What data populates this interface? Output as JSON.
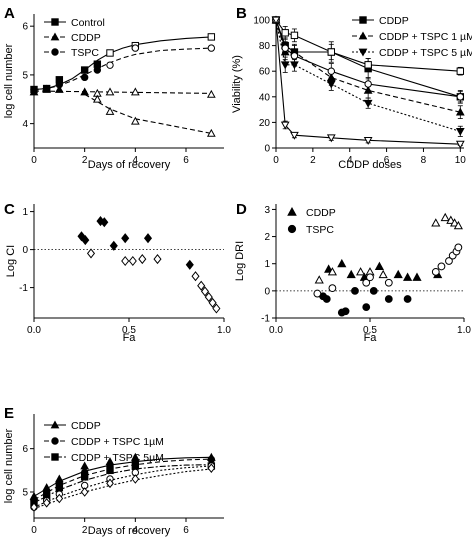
{
  "chart_data": [
    {
      "panel": "A",
      "type": "line",
      "xlabel": "Days of recovery",
      "ylabel": "log cell number",
      "xlim": [
        0,
        7.5
      ],
      "ylim": [
        3.5,
        6.25
      ],
      "xticks": [
        "0",
        "2",
        "4",
        "6"
      ],
      "xtick_values": [
        0,
        2,
        4,
        6
      ],
      "yticks": [
        "4",
        "5",
        "6"
      ],
      "ytick_values": [
        4,
        5,
        6
      ],
      "legend": "top-left",
      "series": [
        {
          "name": "Control",
          "marker": "square",
          "dash": "solid",
          "open_from": 3,
          "x": [
            0,
            0.5,
            1,
            2,
            2.5,
            3,
            4,
            7
          ],
          "y": [
            4.7,
            4.72,
            4.9,
            5.1,
            5.22,
            5.45,
            5.6,
            5.78
          ],
          "fit_x": [
            0,
            0.5,
            1,
            1.5,
            2,
            2.5,
            3,
            3.5,
            4,
            5,
            6,
            7
          ],
          "fit_y": [
            4.7,
            4.72,
            4.8,
            4.92,
            5.1,
            5.3,
            5.45,
            5.55,
            5.62,
            5.7,
            5.75,
            5.78
          ]
        },
        {
          "name": "CDDP",
          "marker": "triangle",
          "dash": "dash",
          "open_from": 2.5,
          "x": [
            0,
            0.5,
            1,
            2,
            2.5,
            3,
            4,
            7
          ],
          "y": [
            4.65,
            4.7,
            4.7,
            4.65,
            4.62,
            4.65,
            4.65,
            4.6
          ],
          "fit_x": [
            0,
            7
          ],
          "fit_y": [
            4.67,
            4.62
          ]
        },
        {
          "name": "TSPC",
          "marker": "circle",
          "dash": "dash",
          "open_from": 3,
          "x": [
            0,
            0.5,
            1,
            2,
            2.5,
            3,
            4,
            7
          ],
          "y": [
            4.7,
            4.72,
            4.8,
            4.95,
            5.1,
            5.2,
            5.55,
            5.55
          ],
          "fit_x": [
            0,
            0.5,
            1,
            1.5,
            2,
            2.5,
            3,
            3.5,
            4,
            5,
            6,
            7
          ],
          "fit_y": [
            4.7,
            4.72,
            4.78,
            4.88,
            5.0,
            5.13,
            5.25,
            5.35,
            5.42,
            5.5,
            5.53,
            5.55
          ]
        },
        {
          "name": "",
          "marker": "triangle",
          "dash": "dash",
          "open_from": 2.5,
          "x": [
            2.5,
            3,
            4,
            7
          ],
          "y": [
            4.5,
            4.25,
            4.05,
            3.8
          ],
          "fit_x": [
            2,
            3,
            4,
            5,
            6,
            7
          ],
          "fit_y": [
            4.6,
            4.3,
            4.1,
            4.0,
            3.9,
            3.8
          ]
        }
      ]
    },
    {
      "panel": "B",
      "type": "line",
      "xlabel": "CDDP doses",
      "ylabel": "Viability (%)",
      "xlim": [
        0,
        10.2
      ],
      "ylim": [
        0,
        100
      ],
      "xticks": [
        "0",
        "2",
        "4",
        "6",
        "8",
        "10"
      ],
      "xtick_values": [
        0,
        2,
        4,
        6,
        8,
        10
      ],
      "yticks": [
        "0",
        "20",
        "40",
        "60",
        "80",
        "100"
      ],
      "ytick_values": [
        0,
        20,
        40,
        60,
        80,
        100
      ],
      "legend": "top-right",
      "series": [
        {
          "name": "CDDP",
          "marker": "square",
          "filled": true,
          "dash": "solid",
          "x": [
            0,
            0.5,
            1,
            3,
            5,
            10
          ],
          "y": [
            100,
            80,
            75,
            75,
            62,
            40
          ],
          "err": [
            0,
            6,
            6,
            8,
            8,
            5
          ]
        },
        {
          "name": "CDDP + TSPC 1 µM",
          "marker": "triangle",
          "filled": true,
          "dash": "dash",
          "x": [
            0,
            0.5,
            1,
            3,
            5,
            10
          ],
          "y": [
            100,
            75,
            75,
            55,
            45,
            28
          ],
          "err": [
            0,
            6,
            5,
            6,
            6,
            5
          ]
        },
        {
          "name": "CDDP + TSPC 5 µM",
          "marker": "triangle-down",
          "filled": true,
          "dash": "dot",
          "x": [
            0,
            0.5,
            1,
            3,
            5,
            10
          ],
          "y": [
            100,
            65,
            65,
            50,
            35,
            13
          ],
          "err": [
            0,
            6,
            5,
            5,
            4,
            4
          ]
        },
        {
          "name": "",
          "marker": "square",
          "filled": false,
          "dash": "solid",
          "x": [
            0,
            0.5,
            1,
            3,
            5,
            10
          ],
          "y": [
            100,
            90,
            88,
            75,
            65,
            60
          ],
          "err": [
            0,
            5,
            5,
            6,
            5,
            3
          ]
        },
        {
          "name": "",
          "marker": "circle",
          "filled": false,
          "dash": "solid",
          "x": [
            0,
            0.5,
            1,
            3,
            5,
            10
          ],
          "y": [
            100,
            78,
            72,
            60,
            50,
            40
          ],
          "err": [
            0,
            5,
            5,
            6,
            5,
            4
          ]
        },
        {
          "name": "",
          "marker": "triangle-down",
          "filled": false,
          "dash": "solid",
          "x": [
            0,
            0.5,
            1,
            3,
            5,
            10
          ],
          "y": [
            100,
            18,
            10,
            8,
            6,
            3
          ],
          "err": [
            0,
            3,
            2,
            2,
            2,
            1
          ]
        }
      ]
    },
    {
      "panel": "C",
      "type": "scatter",
      "xlabel": "Fa",
      "ylabel": "Log CI",
      "xlim": [
        0,
        1
      ],
      "ylim": [
        -1.8,
        1.2
      ],
      "xticks": [
        "0.0",
        "0.5",
        "1.0"
      ],
      "xtick_values": [
        0,
        0.5,
        1
      ],
      "yticks": [
        "-1",
        "0",
        "1"
      ],
      "ytick_values": [
        -1,
        0,
        1
      ],
      "ref_line": 0,
      "series": [
        {
          "name": "",
          "marker": "diamond",
          "filled": true,
          "x": [
            0.25,
            0.27,
            0.35,
            0.37,
            0.42,
            0.48,
            0.6,
            0.82
          ],
          "y": [
            0.35,
            0.25,
            0.75,
            0.72,
            0.1,
            0.3,
            0.3,
            -0.4
          ]
        },
        {
          "name": "",
          "marker": "diamond",
          "filled": false,
          "x": [
            0.3,
            0.48,
            0.52,
            0.57,
            0.65,
            0.85,
            0.88,
            0.9,
            0.92,
            0.94,
            0.96
          ],
          "y": [
            -0.1,
            -0.3,
            -0.3,
            -0.25,
            -0.25,
            -0.7,
            -0.95,
            -1.1,
            -1.25,
            -1.4,
            -1.55
          ]
        }
      ]
    },
    {
      "panel": "D",
      "type": "scatter",
      "xlabel": "Fa",
      "ylabel": "Log DRI",
      "xlim": [
        0,
        1
      ],
      "ylim": [
        -1.0,
        3.2
      ],
      "xticks": [
        "0.0",
        "0.5",
        "1.0"
      ],
      "xtick_values": [
        0,
        0.5,
        1
      ],
      "yticks": [
        "-1",
        "0",
        "1",
        "2",
        "3"
      ],
      "ytick_values": [
        -1,
        0,
        1,
        2,
        3
      ],
      "ref_line": 0,
      "legend": "top-left",
      "series": [
        {
          "name": "CDDP",
          "marker": "triangle",
          "filled": true,
          "x": [
            0.28,
            0.35,
            0.4,
            0.47,
            0.55,
            0.65,
            0.7,
            0.75,
            0.86
          ],
          "y": [
            0.8,
            1.0,
            0.6,
            0.5,
            0.9,
            0.6,
            0.5,
            0.5,
            0.6
          ]
        },
        {
          "name": "TSPC",
          "marker": "circle",
          "filled": true,
          "x": [
            0.25,
            0.27,
            0.35,
            0.37,
            0.42,
            0.48,
            0.52,
            0.6,
            0.7
          ],
          "y": [
            -0.2,
            -0.3,
            -0.8,
            -0.75,
            0.0,
            -0.6,
            0.0,
            -0.3,
            -0.3
          ]
        },
        {
          "name": "",
          "marker": "triangle",
          "filled": false,
          "x": [
            0.23,
            0.3,
            0.45,
            0.5,
            0.57,
            0.85,
            0.9,
            0.93,
            0.95,
            0.97
          ],
          "y": [
            0.4,
            0.7,
            0.7,
            0.7,
            0.6,
            2.5,
            2.7,
            2.6,
            2.5,
            2.4
          ]
        },
        {
          "name": "",
          "marker": "circle",
          "filled": false,
          "x": [
            0.22,
            0.3,
            0.48,
            0.5,
            0.6,
            0.85,
            0.88,
            0.92,
            0.94,
            0.96,
            0.97
          ],
          "y": [
            -0.1,
            0.1,
            0.3,
            0.5,
            0.3,
            0.7,
            0.9,
            1.1,
            1.3,
            1.45,
            1.6
          ]
        }
      ]
    },
    {
      "panel": "E",
      "type": "line",
      "xlabel": "Days of recovery",
      "ylabel": "log cell number",
      "xlim": [
        0,
        7.5
      ],
      "ylim": [
        4.4,
        6.8
      ],
      "xticks": [
        "0",
        "2",
        "4",
        "6"
      ],
      "xtick_values": [
        0,
        2,
        4,
        6
      ],
      "yticks": [
        "5",
        "6"
      ],
      "ytick_values": [
        5,
        6
      ],
      "legend": "top-left",
      "series": [
        {
          "name": "CDDP",
          "marker": "triangle",
          "filled": true,
          "dash": "solid",
          "x": [
            0,
            0.5,
            1,
            2,
            3,
            4,
            7
          ],
          "y": [
            4.9,
            5.1,
            5.3,
            5.6,
            5.7,
            5.8,
            5.8
          ],
          "fit_x": [
            0,
            1,
            2,
            3,
            4,
            5,
            6,
            7
          ],
          "fit_y": [
            4.9,
            5.25,
            5.48,
            5.62,
            5.7,
            5.76,
            5.79,
            5.8
          ]
        },
        {
          "name": "CDDP + TSPC 1µM",
          "marker": "circle",
          "filled": true,
          "dash": "dash",
          "x": [
            0,
            0.5,
            1,
            2,
            3,
            4,
            7
          ],
          "y": [
            4.8,
            5.0,
            5.2,
            5.45,
            5.6,
            5.7,
            5.75
          ],
          "fit_x": [
            0,
            1,
            2,
            3,
            4,
            5,
            6,
            7
          ],
          "fit_y": [
            4.82,
            5.15,
            5.38,
            5.53,
            5.63,
            5.7,
            5.74,
            5.76
          ]
        },
        {
          "name": "CDDP + TSPC 5µM",
          "marker": "square",
          "filled": true,
          "dash": "dash-dot",
          "x": [
            0,
            0.5,
            1,
            2,
            3,
            4,
            7
          ],
          "y": [
            4.75,
            4.9,
            5.1,
            5.35,
            5.5,
            5.6,
            5.6
          ],
          "fit_x": [
            0,
            1,
            2,
            3,
            4,
            5,
            6,
            7
          ],
          "fit_y": [
            4.75,
            5.05,
            5.27,
            5.43,
            5.53,
            5.59,
            5.62,
            5.63
          ]
        },
        {
          "name": "",
          "marker": "circle",
          "filled": false,
          "dash": "dot",
          "x": [
            0,
            0.5,
            1,
            2,
            3,
            4,
            7
          ],
          "y": [
            4.65,
            4.8,
            4.95,
            5.15,
            5.3,
            5.45,
            5.6
          ],
          "fit_x": [
            0,
            1,
            2,
            3,
            4,
            5,
            6,
            7
          ],
          "fit_y": [
            4.65,
            4.9,
            5.1,
            5.27,
            5.4,
            5.5,
            5.56,
            5.6
          ]
        },
        {
          "name": "",
          "marker": "diamond",
          "filled": false,
          "dash": "dot",
          "x": [
            0,
            0.5,
            1,
            2,
            3,
            4,
            7
          ],
          "y": [
            4.65,
            4.75,
            4.85,
            5.0,
            5.2,
            5.3,
            5.55
          ],
          "fit_x": [
            0,
            1,
            2,
            3,
            4,
            5,
            6,
            7
          ],
          "fit_y": [
            4.62,
            4.82,
            5.0,
            5.15,
            5.28,
            5.38,
            5.47,
            5.53
          ]
        }
      ]
    }
  ]
}
